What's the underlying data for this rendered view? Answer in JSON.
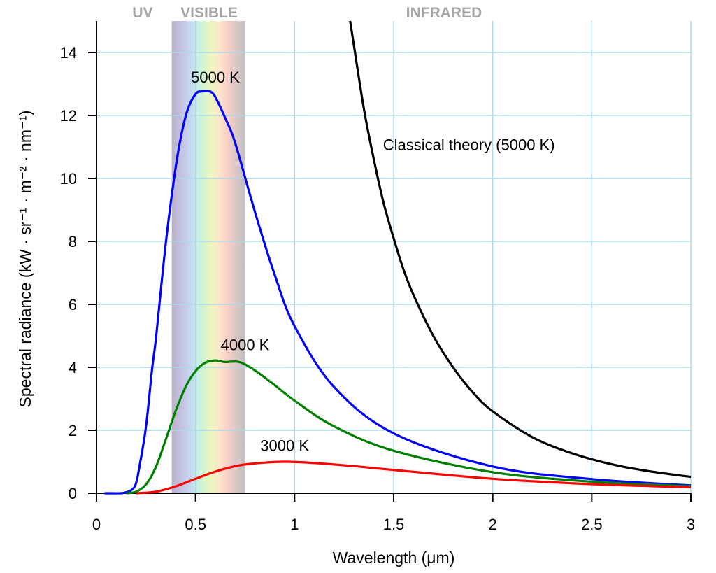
{
  "chart_data": {
    "type": "line",
    "xlabel": "Wavelength (μm)",
    "ylabel": "Spectral radiance (kW · sr⁻¹ · m⁻² · nm⁻¹)",
    "xlim": [
      0,
      3
    ],
    "ylim": [
      0,
      15
    ],
    "x_ticks": [
      "0",
      "0.5",
      "1",
      "1.5",
      "2",
      "2.5",
      "3"
    ],
    "y_ticks": [
      "0",
      "2",
      "4",
      "6",
      "8",
      "10",
      "12",
      "14"
    ],
    "grid": true,
    "regions": [
      {
        "label": "UV",
        "color": "#a6a6a6"
      },
      {
        "label": "VISIBLE",
        "color": "#a6a6a6",
        "x_range": [
          0.38,
          0.75
        ]
      },
      {
        "label": "INFRARED",
        "color": "#a6a6a6"
      }
    ],
    "series": [
      {
        "name": "5000 K",
        "color": "#0000ff",
        "x": [
          0.04,
          0.08,
          0.12,
          0.15,
          0.18,
          0.2,
          0.22,
          0.25,
          0.28,
          0.3,
          0.33,
          0.36,
          0.4,
          0.43,
          0.46,
          0.5,
          0.53,
          0.58,
          0.61,
          0.65,
          0.7,
          0.8,
          0.9,
          1.0,
          1.2,
          1.5,
          2.0,
          2.5,
          3.0
        ],
        "y": [
          0.0,
          0.0,
          0.0,
          0.03,
          0.12,
          0.33,
          0.96,
          2.12,
          3.91,
          4.91,
          6.78,
          8.49,
          10.36,
          11.43,
          12.18,
          12.68,
          12.76,
          12.74,
          12.46,
          11.91,
          11.13,
          8.93,
          6.93,
          5.31,
          3.37,
          1.9,
          0.85,
          0.45,
          0.25
        ]
      },
      {
        "name": "4000 K",
        "color": "#008000",
        "x": [
          0.15,
          0.2,
          0.25,
          0.3,
          0.35,
          0.4,
          0.45,
          0.5,
          0.55,
          0.6,
          0.65,
          0.72,
          0.8,
          0.9,
          1.0,
          1.2,
          1.5,
          2.0,
          2.5,
          3.0
        ],
        "y": [
          0.0,
          0.05,
          0.28,
          0.84,
          1.71,
          2.62,
          3.38,
          3.88,
          4.15,
          4.22,
          4.17,
          4.17,
          3.9,
          3.43,
          2.94,
          2.12,
          1.35,
          0.67,
          0.37,
          0.22
        ]
      },
      {
        "name": "3000 K",
        "color": "#ff0000",
        "x": [
          0.2,
          0.3,
          0.4,
          0.5,
          0.6,
          0.7,
          0.8,
          0.95,
          1.1,
          1.3,
          1.5,
          2.0,
          2.5,
          3.0
        ],
        "y": [
          0.0,
          0.05,
          0.22,
          0.46,
          0.69,
          0.86,
          0.95,
          1.0,
          0.96,
          0.86,
          0.74,
          0.46,
          0.29,
          0.19
        ]
      },
      {
        "name": "Classical theory (5000 K)",
        "color": "#000000",
        "x": [
          1.28,
          1.3,
          1.35,
          1.4,
          1.45,
          1.5,
          1.55,
          1.6,
          1.7,
          1.8,
          1.9,
          2.0,
          2.2,
          2.4,
          2.6,
          2.8,
          3.0
        ],
        "y": [
          15.0,
          14.2,
          12.2,
          10.6,
          9.2,
          8.1,
          7.1,
          6.3,
          5.0,
          4.0,
          3.2,
          2.6,
          1.78,
          1.27,
          0.92,
          0.69,
          0.52
        ]
      }
    ],
    "annotations": [
      {
        "text": "5000 K",
        "x": 0.6,
        "y": 13.05
      },
      {
        "text": "4000 K",
        "x": 0.75,
        "y": 4.55
      },
      {
        "text": "3000 K",
        "x": 0.95,
        "y": 1.35
      },
      {
        "text": "Classical theory (5000 K)",
        "x": 1.88,
        "y": 10.9
      }
    ]
  }
}
